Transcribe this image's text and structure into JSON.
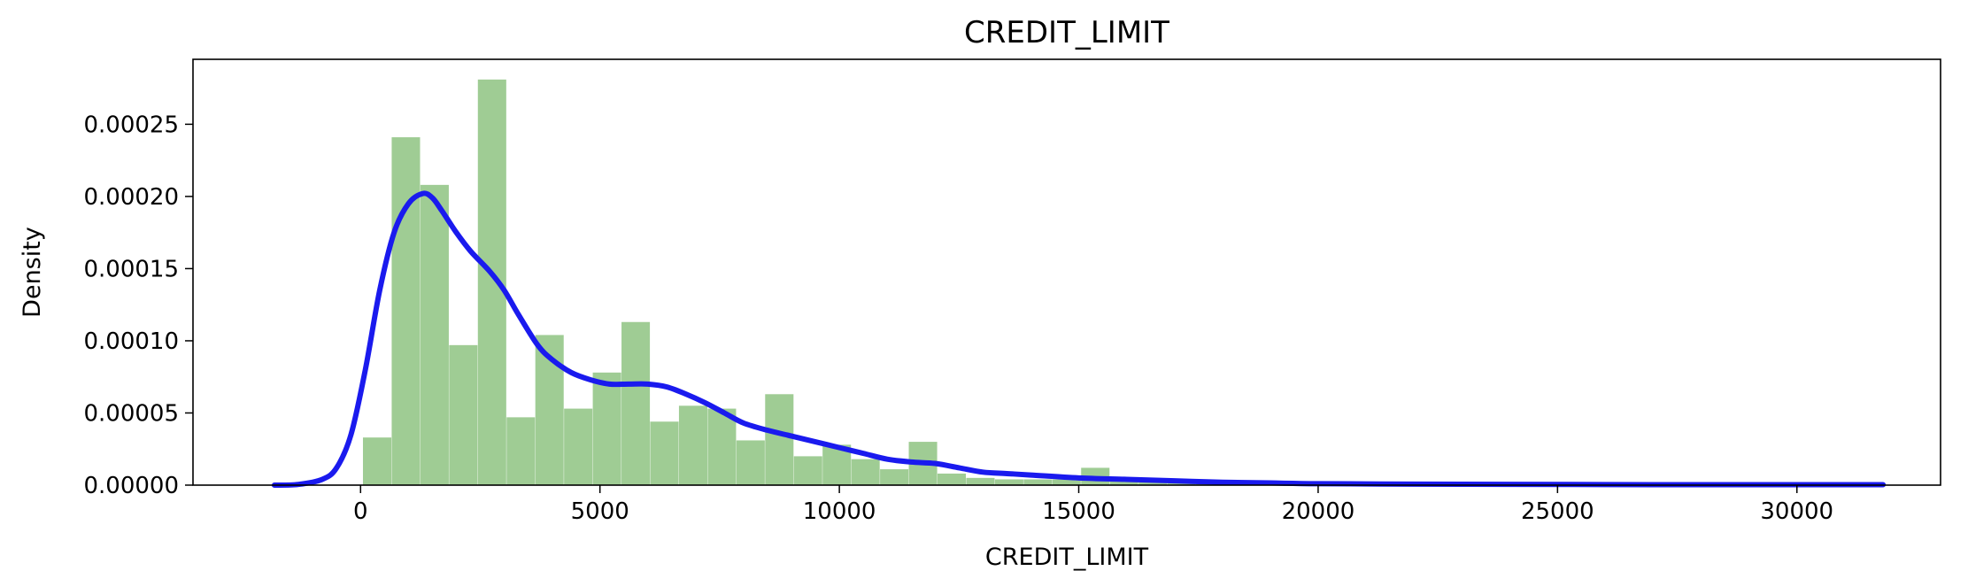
{
  "chart_data": {
    "type": "bar",
    "title": "CREDIT_LIMIT",
    "xlabel": "CREDIT_LIMIT",
    "ylabel": "Density",
    "xlim": [
      -3500,
      33000
    ],
    "ylim": [
      0,
      0.000295
    ],
    "xticks": [
      0,
      5000,
      10000,
      15000,
      20000,
      25000,
      30000
    ],
    "xtick_labels": [
      "0",
      "5000",
      "10000",
      "15000",
      "20000",
      "25000",
      "30000"
    ],
    "yticks": [
      0,
      5e-05,
      0.0001,
      0.00015,
      0.0002,
      0.00025
    ],
    "ytick_labels": [
      "0.00000",
      "0.00005",
      "0.00010",
      "0.00015",
      "0.00020",
      "0.00025"
    ],
    "grid": false,
    "histogram": {
      "color": "#9fcc94",
      "bin_width": 600,
      "bin_start": 50,
      "density": [
        3.3e-05,
        0.000241,
        0.000208,
        9.7e-05,
        0.000281,
        4.7e-05,
        0.000104,
        5.3e-05,
        7.8e-05,
        0.000113,
        4.4e-05,
        5.5e-05,
        5.3e-05,
        3.1e-05,
        6.3e-05,
        2e-05,
        2.8e-05,
        1.8e-05,
        1.1e-05,
        3e-05,
        8e-06,
        5e-06,
        4e-06,
        4e-06,
        4e-06,
        1.2e-05,
        3e-06,
        2e-06,
        2e-06,
        2e-06,
        1e-06,
        1e-06,
        1e-06,
        1e-06,
        1e-06,
        1e-06,
        1e-06,
        1e-06,
        1e-06,
        1e-06,
        1e-06,
        1e-06,
        1e-06,
        1e-06,
        1e-06,
        1e-06,
        1e-06,
        1e-06,
        1e-06,
        1e-06,
        1e-06,
        1e-06
      ]
    },
    "kde": {
      "color": "#1a1aee",
      "x": [
        -1800,
        -1300,
        -800,
        -500,
        -200,
        100,
        400,
        700,
        1000,
        1300,
        1500,
        1700,
        2000,
        2300,
        2700,
        3000,
        3300,
        3700,
        4000,
        4400,
        4800,
        5200,
        5600,
        6000,
        6400,
        6800,
        7200,
        7600,
        8000,
        8500,
        9000,
        9500,
        10000,
        10500,
        11000,
        11500,
        12000,
        12500,
        13000,
        13500,
        14000,
        15000,
        16000,
        17000,
        18000,
        19000,
        20000,
        22000,
        24000,
        26000,
        28000,
        30000,
        31800
      ],
      "y": [
        0.0,
        5e-07,
        4e-06,
        1.2e-05,
        3.5e-05,
        8e-05,
        0.000135,
        0.000175,
        0.000195,
        0.000202,
        0.000199,
        0.00019,
        0.000175,
        0.000162,
        0.000148,
        0.000135,
        0.000118,
        9.7e-05,
        8.7e-05,
        7.8e-05,
        7.3e-05,
        7e-05,
        7e-05,
        7e-05,
        6.8e-05,
        6.3e-05,
        5.7e-05,
        5e-05,
        4.3e-05,
        3.8e-05,
        3.4e-05,
        3e-05,
        2.6e-05,
        2.2e-05,
        1.8e-05,
        1.6e-05,
        1.5e-05,
        1.2e-05,
        9e-06,
        8e-06,
        7e-06,
        5e-06,
        4e-06,
        3e-06,
        2e-06,
        1.5e-06,
        1e-06,
        7e-07,
        5e-07,
        4e-07,
        3e-07,
        3e-07,
        3e-07
      ]
    }
  }
}
